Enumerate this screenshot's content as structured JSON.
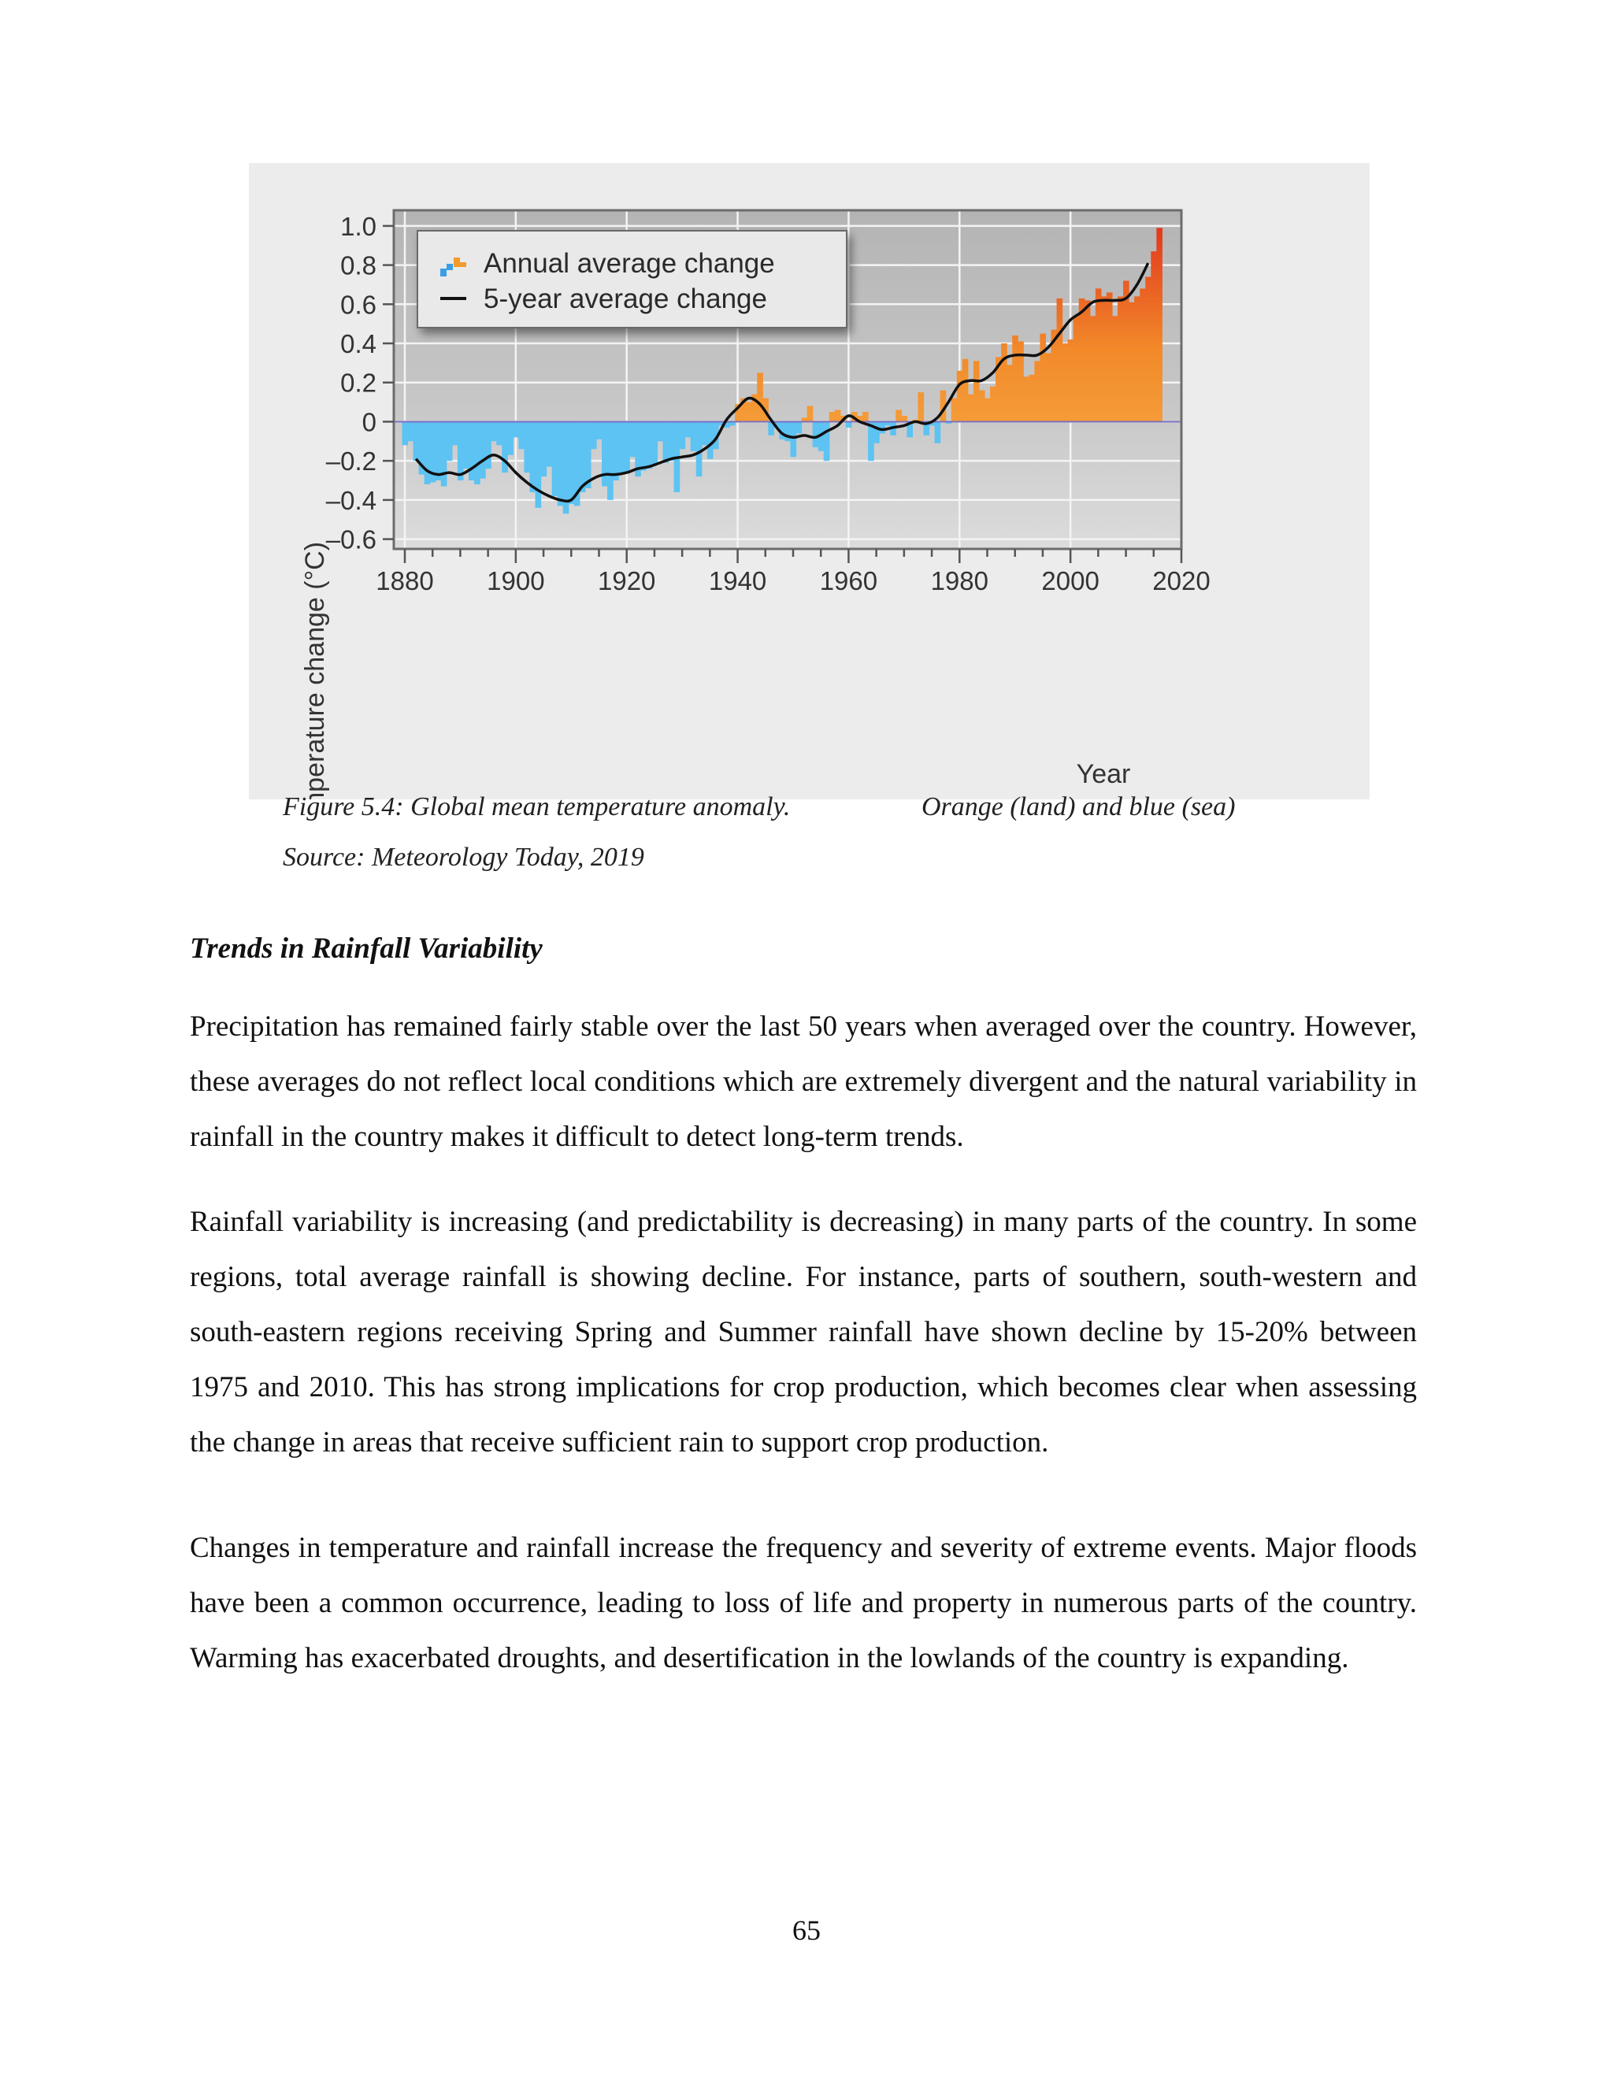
{
  "figure": {
    "chart_data": {
      "type": "bar",
      "ylabel": "Temperature change (°C)",
      "xlabel": "Year",
      "xlim": [
        1880,
        2020
      ],
      "ylim": [
        -0.6,
        1.0
      ],
      "x_ticks": [
        1880,
        1900,
        1920,
        1940,
        1960,
        1980,
        2000,
        2020
      ],
      "y_ticks": [
        {
          "value": 1.0,
          "label": "1.0"
        },
        {
          "value": 0.8,
          "label": "0.8"
        },
        {
          "value": 0.6,
          "label": "0.6"
        },
        {
          "value": 0.4,
          "label": "0.4"
        },
        {
          "value": 0.2,
          "label": "0.2"
        },
        {
          "value": 0.0,
          "label": "0"
        },
        {
          "value": -0.2,
          "label": "–0.2"
        },
        {
          "value": -0.4,
          "label": "–0.4"
        },
        {
          "value": -0.6,
          "label": "–0.6"
        }
      ],
      "grid": true,
      "legend_position": "top-left",
      "legend": [
        {
          "label": "Annual average change",
          "marker": "bars"
        },
        {
          "label": "5-year average change",
          "marker": "line"
        }
      ],
      "colors": {
        "negative": "#3a9ee6",
        "positive": "#f39a2c",
        "recent": "#e03a20",
        "line": "#111111",
        "zero_line": "#7a6ec0"
      },
      "annual": {
        "x": [
          1880,
          1881,
          1882,
          1883,
          1884,
          1885,
          1886,
          1887,
          1888,
          1889,
          1890,
          1891,
          1892,
          1893,
          1894,
          1895,
          1896,
          1897,
          1898,
          1899,
          1900,
          1901,
          1902,
          1903,
          1904,
          1905,
          1906,
          1907,
          1908,
          1909,
          1910,
          1911,
          1912,
          1913,
          1914,
          1915,
          1916,
          1917,
          1918,
          1919,
          1920,
          1921,
          1922,
          1923,
          1924,
          1925,
          1926,
          1927,
          1928,
          1929,
          1930,
          1931,
          1932,
          1933,
          1934,
          1935,
          1936,
          1937,
          1938,
          1939,
          1940,
          1941,
          1942,
          1943,
          1944,
          1945,
          1946,
          1947,
          1948,
          1949,
          1950,
          1951,
          1952,
          1953,
          1954,
          1955,
          1956,
          1957,
          1958,
          1959,
          1960,
          1961,
          1962,
          1963,
          1964,
          1965,
          1966,
          1967,
          1968,
          1969,
          1970,
          1971,
          1972,
          1973,
          1974,
          1975,
          1976,
          1977,
          1978,
          1979,
          1980,
          1981,
          1982,
          1983,
          1984,
          1985,
          1986,
          1987,
          1988,
          1989,
          1990,
          1991,
          1992,
          1993,
          1994,
          1995,
          1996,
          1997,
          1998,
          1999,
          2000,
          2001,
          2002,
          2003,
          2004,
          2005,
          2006,
          2007,
          2008,
          2009,
          2010,
          2011,
          2012,
          2013,
          2014,
          2015,
          2016
        ],
        "values": [
          -0.12,
          -0.1,
          -0.2,
          -0.27,
          -0.32,
          -0.31,
          -0.3,
          -0.33,
          -0.2,
          -0.12,
          -0.3,
          -0.24,
          -0.3,
          -0.32,
          -0.29,
          -0.24,
          -0.1,
          -0.12,
          -0.26,
          -0.17,
          -0.08,
          -0.14,
          -0.26,
          -0.36,
          -0.44,
          -0.28,
          -0.23,
          -0.38,
          -0.43,
          -0.47,
          -0.42,
          -0.43,
          -0.36,
          -0.34,
          -0.14,
          -0.09,
          -0.33,
          -0.4,
          -0.3,
          -0.26,
          -0.26,
          -0.18,
          -0.28,
          -0.25,
          -0.24,
          -0.22,
          -0.1,
          -0.21,
          -0.2,
          -0.36,
          -0.14,
          -0.08,
          -0.15,
          -0.28,
          -0.12,
          -0.19,
          -0.14,
          -0.02,
          -0.03,
          -0.02,
          0.09,
          0.12,
          0.1,
          0.14,
          0.25,
          0.12,
          -0.07,
          -0.03,
          -0.09,
          -0.1,
          -0.18,
          -0.06,
          0.02,
          0.08,
          -0.13,
          -0.15,
          -0.2,
          0.05,
          0.06,
          0.03,
          -0.03,
          0.05,
          0.03,
          0.05,
          -0.2,
          -0.11,
          -0.06,
          -0.02,
          -0.07,
          0.06,
          0.03,
          -0.08,
          0.01,
          0.15,
          -0.07,
          -0.02,
          -0.11,
          0.16,
          -0.01,
          0.12,
          0.26,
          0.32,
          0.14,
          0.31,
          0.16,
          0.12,
          0.18,
          0.33,
          0.4,
          0.29,
          0.44,
          0.41,
          0.23,
          0.24,
          0.31,
          0.45,
          0.35,
          0.47,
          0.63,
          0.4,
          0.42,
          0.54,
          0.63,
          0.62,
          0.54,
          0.68,
          0.64,
          0.66,
          0.54,
          0.64,
          0.72,
          0.61,
          0.64,
          0.68,
          0.74,
          0.87,
          0.99
        ]
      },
      "five_year": {
        "x": [
          1882,
          1884,
          1886,
          1888,
          1890,
          1892,
          1894,
          1896,
          1898,
          1900,
          1902,
          1904,
          1906,
          1908,
          1910,
          1912,
          1914,
          1916,
          1918,
          1920,
          1922,
          1924,
          1926,
          1928,
          1930,
          1932,
          1934,
          1936,
          1938,
          1940,
          1942,
          1944,
          1946,
          1948,
          1950,
          1952,
          1954,
          1956,
          1958,
          1960,
          1962,
          1964,
          1966,
          1968,
          1970,
          1972,
          1974,
          1976,
          1978,
          1980,
          1982,
          1984,
          1986,
          1988,
          1990,
          1992,
          1994,
          1996,
          1998,
          2000,
          2002,
          2004,
          2006,
          2008,
          2010,
          2012,
          2014
        ],
        "values": [
          -0.19,
          -0.25,
          -0.27,
          -0.26,
          -0.27,
          -0.24,
          -0.2,
          -0.17,
          -0.2,
          -0.26,
          -0.31,
          -0.35,
          -0.38,
          -0.4,
          -0.4,
          -0.33,
          -0.29,
          -0.27,
          -0.27,
          -0.26,
          -0.24,
          -0.23,
          -0.21,
          -0.19,
          -0.18,
          -0.17,
          -0.14,
          -0.09,
          0.01,
          0.07,
          0.12,
          0.09,
          0.01,
          -0.06,
          -0.08,
          -0.07,
          -0.08,
          -0.05,
          -0.02,
          0.03,
          0.0,
          -0.02,
          -0.04,
          -0.03,
          -0.02,
          0.0,
          -0.01,
          0.02,
          0.1,
          0.19,
          0.21,
          0.21,
          0.25,
          0.32,
          0.34,
          0.34,
          0.34,
          0.38,
          0.45,
          0.52,
          0.56,
          0.61,
          0.62,
          0.62,
          0.63,
          0.7,
          0.81
        ]
      }
    },
    "caption_left": "Figure 5.4: Global mean temperature anomaly.",
    "caption_right": "Orange (land) and blue (sea)",
    "source": "Source: Meteorology Today, 2019"
  },
  "section": {
    "heading": "Trends in Rainfall Variability",
    "paragraphs": [
      "Precipitation has remained fairly stable over the last 50 years when averaged over the country. However, these averages do not reflect local conditions which are extremely divergent and the natural variability in rainfall in the country makes it difficult to detect long-term trends.",
      "Rainfall variability is increasing (and predictability is decreasing) in many parts of the country. In some regions, total average rainfall is showing decline. For instance, parts of southern, south-western and south-eastern regions receiving Spring and Summer rainfall have shown decline by 15-20% between 1975 and 2010. This has strong implications for crop production, which becomes clear when assessing the change in areas that receive sufficient rain to support crop production.",
      "Changes in temperature and rainfall increase the frequency and severity of extreme events. Major floods have been a common occurrence, leading to loss of life and property in numerous parts of the country. Warming has exacerbated droughts, and desertification in the lowlands of the country is expanding."
    ]
  },
  "page_number": "65"
}
